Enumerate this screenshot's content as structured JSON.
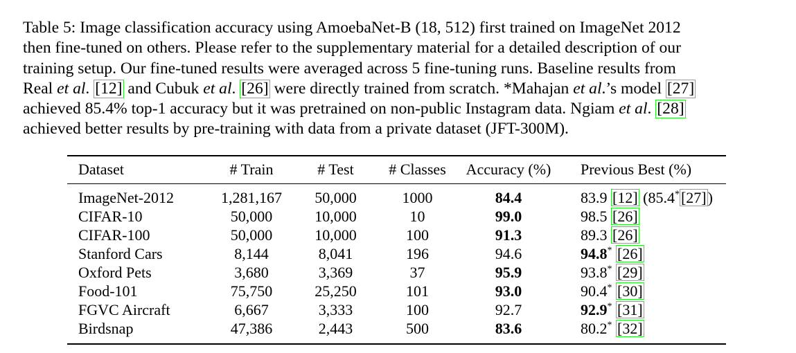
{
  "caption": {
    "label": "Table 5:",
    "line1_text": " Image classification accuracy using AmoebaNet-B (18, 512) first trained on ImageNet 2012",
    "line2": "then fine-tuned on others. Please refer to the supplementary material for a detailed description of our",
    "line3": "training setup. Our fine-tuned results were averaged across 5 fine-tuning runs. Baseline results from",
    "line4_a": "Real ",
    "line4_etal1": "et al",
    "line4_b": ". ",
    "line4_cite1": "[12]",
    "line4_c": " and Cubuk ",
    "line4_etal2": "et al",
    "line4_d": ". ",
    "line4_cite2": "[26]",
    "line4_e": " were directly trained from scratch. *Mahajan ",
    "line4_etal3": "et al",
    "line4_f": ".’s model ",
    "line4_cite3": "[27]",
    "line5_a": "achieved 85.4% top-1 accuracy but it was pretrained on non-public Instagram data. Ngiam ",
    "line5_etal": "et al",
    "line5_b": ". ",
    "line5_cite": "[28]",
    "line6": "achieved better results by pre-training with data from a private dataset (JFT-300M)."
  },
  "table": {
    "headers": {
      "dataset": "Dataset",
      "train": "# Train",
      "test": "# Test",
      "classes": "# Classes",
      "accuracy": "Accuracy (%)",
      "previous_best": "Previous Best (%)"
    },
    "rows": [
      {
        "dataset": "ImageNet-2012",
        "train": "1,281,167",
        "test": "50,000",
        "classes": "1000",
        "accuracy": "84.4",
        "prev": "83.9",
        "prev_star": "",
        "cite": "[12]",
        "extra_open": " (85.4",
        "extra_star": "*",
        "extra_cite": "[27]",
        "extra_close": ")"
      },
      {
        "dataset": "CIFAR-10",
        "train": "50,000",
        "test": "10,000",
        "classes": "10",
        "accuracy": "99.0",
        "prev": "98.5",
        "prev_star": "",
        "cite": "[26]"
      },
      {
        "dataset": "CIFAR-100",
        "train": "50,000",
        "test": "10,000",
        "classes": "100",
        "accuracy": "91.3",
        "prev": "89.3",
        "prev_star": "",
        "cite": "[26]"
      },
      {
        "dataset": "Stanford Cars",
        "train": "8,144",
        "test": "8,041",
        "classes": "196",
        "accuracy": "94.6",
        "prev": "94.8",
        "prev_star": "*",
        "cite": "[26]"
      },
      {
        "dataset": "Oxford Pets",
        "train": "3,680",
        "test": "3,369",
        "classes": "37",
        "accuracy": "95.9",
        "prev": "93.8",
        "prev_star": "*",
        "cite": "[29]"
      },
      {
        "dataset": "Food-101",
        "train": "75,750",
        "test": "25,250",
        "classes": "101",
        "accuracy": "93.0",
        "prev": "90.4",
        "prev_star": "*",
        "cite": "[30]"
      },
      {
        "dataset": "FGVC Aircraft",
        "train": "6,667",
        "test": "3,333",
        "classes": "100",
        "accuracy": "92.7",
        "prev": "92.9",
        "prev_star": "*",
        "cite": "[31]"
      },
      {
        "dataset": "Birdsnap",
        "train": "47,386",
        "test": "2,443",
        "classes": "500",
        "accuracy": "83.6",
        "prev": "80.2",
        "prev_star": "*",
        "cite": "[32]"
      }
    ],
    "bold_accuracy_rows": [
      0,
      1,
      2,
      4,
      5,
      7
    ],
    "bold_previous_rows": [
      3,
      6
    ]
  },
  "colors": {
    "citation_box": "#22ee22",
    "text": "#000000",
    "background": "#ffffff"
  }
}
